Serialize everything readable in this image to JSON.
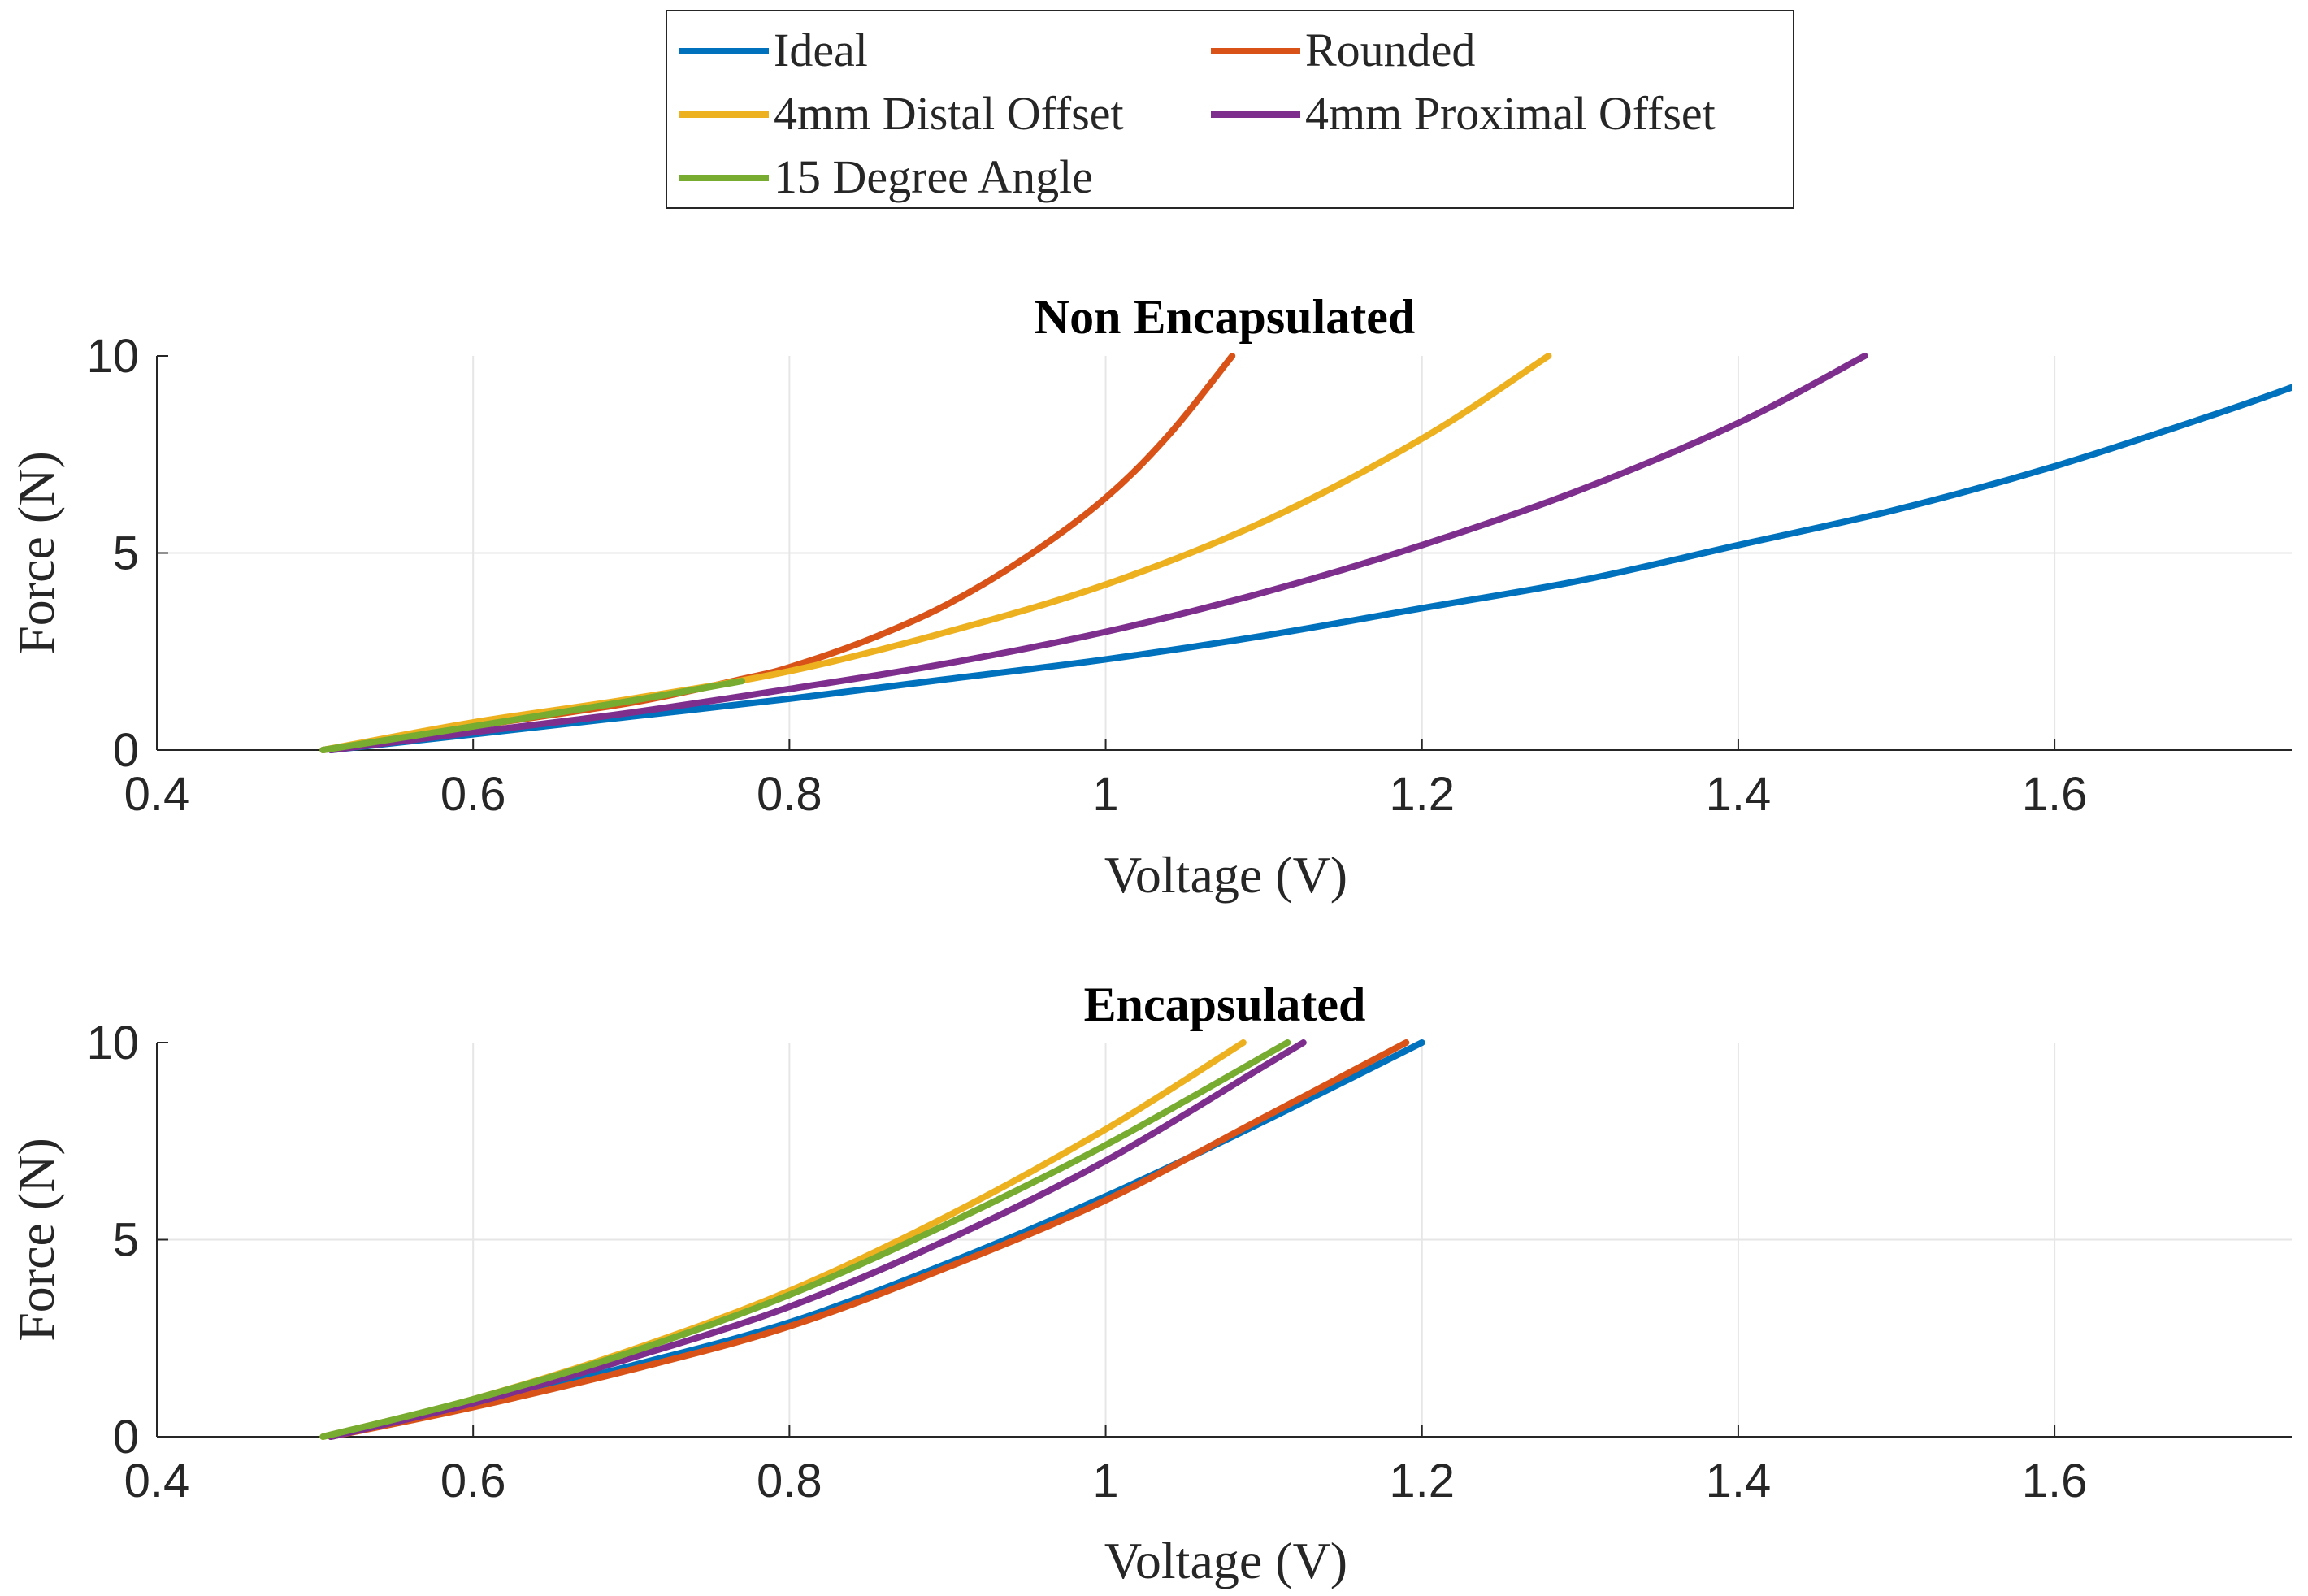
{
  "legend": {
    "entries": [
      {
        "name": "Ideal",
        "color": "#0072BD"
      },
      {
        "name": "Rounded",
        "color": "#D95319"
      },
      {
        "name": "4mm Distal Offset",
        "color": "#EDB120"
      },
      {
        "name": "4mm Proximal Offset",
        "color": "#7E2F8E"
      },
      {
        "name": "15 Degree Angle",
        "color": "#77AC30"
      }
    ]
  },
  "chart_data": [
    {
      "type": "line",
      "title": "Non Encapsulated",
      "xlabel": "Voltage (V)",
      "ylabel": "Force (N)",
      "xlim": [
        0.4,
        1.75
      ],
      "ylim": [
        0,
        10
      ],
      "xticks": [
        "0.4",
        "0.6",
        "0.8",
        "1",
        "1.2",
        "1.4",
        "1.6"
      ],
      "xtick_values": [
        0.4,
        0.6,
        0.8,
        1.0,
        1.2,
        1.4,
        1.6
      ],
      "yticks": [
        "0",
        "5",
        "10"
      ],
      "ytick_values": [
        0,
        5,
        10
      ],
      "grid": true,
      "series": [
        {
          "name": "Ideal",
          "color": "#0072BD",
          "x": [
            0.51,
            0.6,
            0.7,
            0.8,
            0.9,
            1.0,
            1.1,
            1.2,
            1.3,
            1.4,
            1.5,
            1.6,
            1.7,
            1.75
          ],
          "y": [
            0,
            0.4,
            0.85,
            1.3,
            1.8,
            2.3,
            2.9,
            3.6,
            4.3,
            5.2,
            6.1,
            7.2,
            8.5,
            9.2
          ]
        },
        {
          "name": "Rounded",
          "color": "#D95319",
          "x": [
            0.505,
            0.6,
            0.7,
            0.77,
            0.8,
            0.85,
            0.9,
            0.95,
            1.0,
            1.04,
            1.08
          ],
          "y": [
            0,
            0.6,
            1.2,
            1.8,
            2.1,
            2.8,
            3.7,
            4.9,
            6.4,
            8.0,
            10.0
          ]
        },
        {
          "name": "4mm Distal Offset",
          "color": "#EDB120",
          "x": [
            0.505,
            0.6,
            0.7,
            0.8,
            0.9,
            1.0,
            1.1,
            1.2,
            1.28
          ],
          "y": [
            0,
            0.7,
            1.3,
            2.0,
            3.0,
            4.2,
            5.8,
            7.9,
            10.0
          ]
        },
        {
          "name": "4mm Proximal Offset",
          "color": "#7E2F8E",
          "x": [
            0.51,
            0.6,
            0.7,
            0.8,
            0.9,
            1.0,
            1.1,
            1.2,
            1.3,
            1.4,
            1.48
          ],
          "y": [
            0,
            0.45,
            0.95,
            1.55,
            2.2,
            3.0,
            4.0,
            5.2,
            6.6,
            8.3,
            10.0
          ]
        },
        {
          "name": "15 Degree Angle",
          "color": "#77AC30",
          "x": [
            0.505,
            0.6,
            0.7,
            0.77
          ],
          "y": [
            0,
            0.6,
            1.25,
            1.75
          ]
        }
      ]
    },
    {
      "type": "line",
      "title": "Encapsulated",
      "xlabel": "Voltage (V)",
      "ylabel": "Force (N)",
      "xlim": [
        0.4,
        1.75
      ],
      "ylim": [
        0,
        10
      ],
      "xticks": [
        "0.4",
        "0.6",
        "0.8",
        "1",
        "1.2",
        "1.4",
        "1.6"
      ],
      "xtick_values": [
        0.4,
        0.6,
        0.8,
        1.0,
        1.2,
        1.4,
        1.6
      ],
      "yticks": [
        "0",
        "5",
        "10"
      ],
      "ytick_values": [
        0,
        5,
        10
      ],
      "grid": true,
      "series": [
        {
          "name": "Ideal",
          "color": "#0072BD",
          "x": [
            0.51,
            0.6,
            0.7,
            0.8,
            0.9,
            1.0,
            1.1,
            1.2
          ],
          "y": [
            0,
            0.8,
            1.8,
            2.9,
            4.4,
            6.1,
            8.0,
            10.0
          ]
        },
        {
          "name": "Rounded",
          "color": "#D95319",
          "x": [
            0.51,
            0.6,
            0.7,
            0.8,
            0.9,
            1.0,
            1.1,
            1.19
          ],
          "y": [
            0,
            0.75,
            1.7,
            2.8,
            4.3,
            6.0,
            8.1,
            10.0
          ]
        },
        {
          "name": "4mm Distal Offset",
          "color": "#EDB120",
          "x": [
            0.505,
            0.6,
            0.7,
            0.8,
            0.9,
            1.0,
            1.087
          ],
          "y": [
            0,
            0.95,
            2.2,
            3.7,
            5.6,
            7.8,
            10.0
          ]
        },
        {
          "name": "4mm Proximal Offset",
          "color": "#7E2F8E",
          "x": [
            0.51,
            0.6,
            0.7,
            0.8,
            0.9,
            1.0,
            1.1,
            1.125
          ],
          "y": [
            0,
            0.85,
            2.0,
            3.3,
            5.0,
            7.0,
            9.4,
            10.0
          ]
        },
        {
          "name": "15 Degree Angle",
          "color": "#77AC30",
          "x": [
            0.505,
            0.6,
            0.7,
            0.8,
            0.9,
            1.0,
            1.115
          ],
          "y": [
            0,
            0.95,
            2.15,
            3.6,
            5.4,
            7.4,
            10.0
          ]
        }
      ]
    }
  ]
}
